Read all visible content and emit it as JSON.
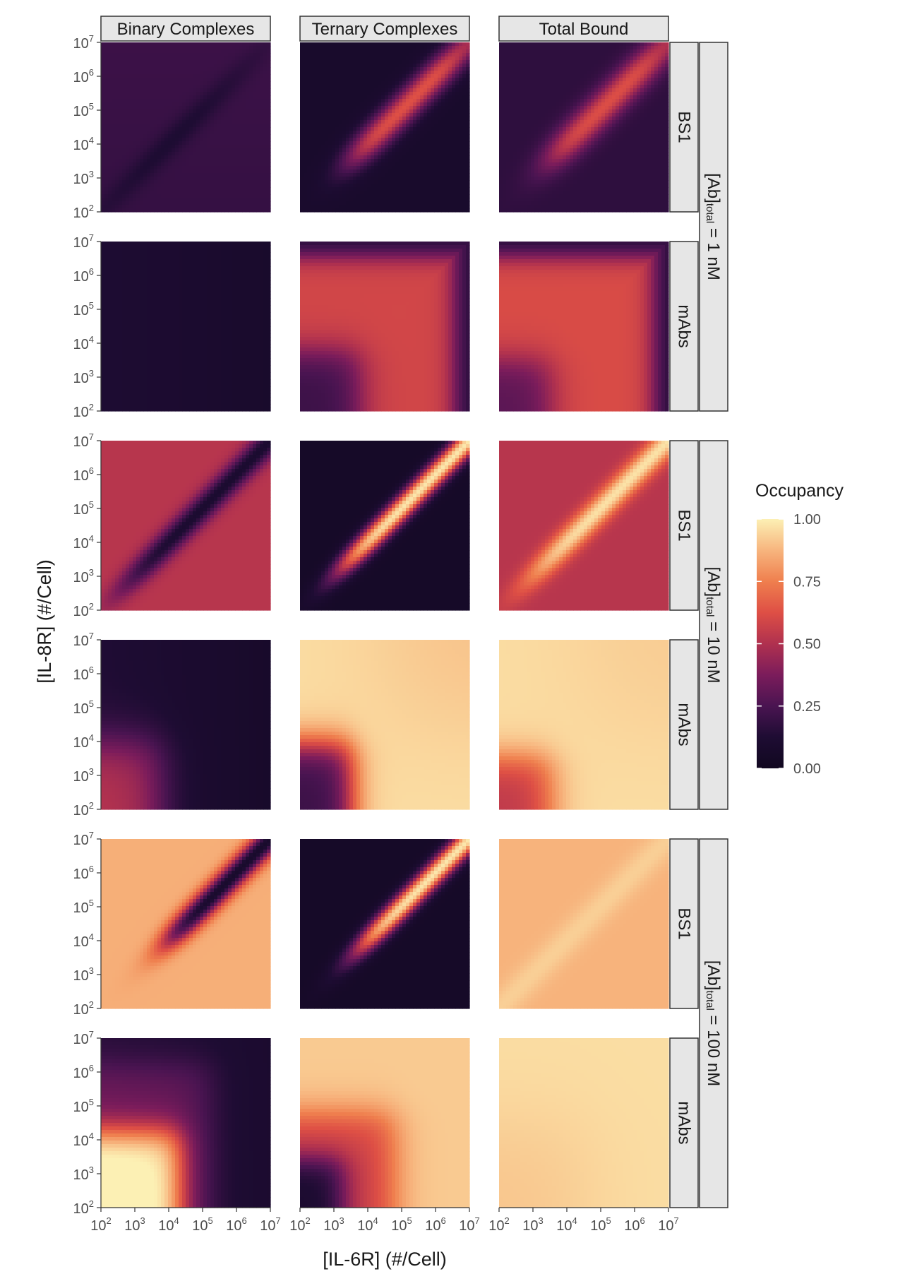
{
  "chart_data": {
    "type": "heatmap",
    "x_axis_title": "[IL-6R] (#/Cell)",
    "y_axis_title": "[IL-8R] (#/Cell)",
    "x_scale": "log10",
    "y_scale": "log10",
    "xlim": [
      100,
      10000000
    ],
    "ylim": [
      100,
      10000000
    ],
    "tick_exponents": [
      2,
      3,
      4,
      5,
      6,
      7
    ],
    "tick_base": "10",
    "column_facets": [
      "Binary Complexes",
      "Ternary Complexes",
      "Total Bound"
    ],
    "row_facets_inner": [
      "BS1",
      "mAbs"
    ],
    "row_groups": [
      {
        "label_main": "[Ab]",
        "label_sub": "total",
        "label_rest": " = 1 nM"
      },
      {
        "label_main": "[Ab]",
        "label_sub": "total",
        "label_rest": " = 10 nM"
      },
      {
        "label_main": "[Ab]",
        "label_sub": "total",
        "label_rest": " = 100 nM"
      }
    ],
    "legend": {
      "title": "Occupancy",
      "placement": "right",
      "ticks": [
        "1.00",
        "0.75",
        "0.50",
        "0.25",
        "0.00"
      ],
      "range": [
        0,
        1
      ],
      "palette": [
        "#fcf0b4",
        "#f7b57e",
        "#ef7f4e",
        "#de4f45",
        "#b0314f",
        "#7b1c5b",
        "#4a1451",
        "#1e0c33",
        "#110820"
      ]
    },
    "panels": [
      {
        "row": 0,
        "col": 0,
        "desc": "BS1 binary, 1 nM",
        "approx_values": {
          "background": 0.18,
          "diagonal_min": 0.12
        }
      },
      {
        "row": 0,
        "col": 1,
        "desc": "BS1 ternary, 1 nM",
        "approx_values": {
          "background": 0.08,
          "diagonal_peak": 0.6
        }
      },
      {
        "row": 0,
        "col": 2,
        "desc": "BS1 total, 1 nM",
        "approx_values": {
          "background": 0.18,
          "diagonal_peak": 0.6
        }
      },
      {
        "row": 1,
        "col": 0,
        "desc": "mAbs binary, 1 nM",
        "approx_values": {
          "background": 0.1
        }
      },
      {
        "row": 1,
        "col": 1,
        "desc": "mAbs ternary, 1 nM",
        "approx_values": {
          "plateau": 0.58,
          "corner_low": 0.12
        }
      },
      {
        "row": 1,
        "col": 2,
        "desc": "mAbs total, 1 nM",
        "approx_values": {
          "plateau": 0.6
        }
      },
      {
        "row": 2,
        "col": 0,
        "desc": "BS1 binary, 10 nM",
        "approx_values": {
          "background": 0.5,
          "diagonal_min": 0.1
        }
      },
      {
        "row": 2,
        "col": 1,
        "desc": "BS1 ternary, 10 nM",
        "approx_values": {
          "background": 0.05,
          "diagonal_peak": 0.95
        }
      },
      {
        "row": 2,
        "col": 2,
        "desc": "BS1 total, 10 nM",
        "approx_values": {
          "background": 0.52,
          "diagonal_peak": 0.95
        }
      },
      {
        "row": 3,
        "col": 0,
        "desc": "mAbs binary, 10 nM",
        "approx_values": {
          "background": 0.08,
          "corner_peak": 0.45
        }
      },
      {
        "row": 3,
        "col": 1,
        "desc": "mAbs ternary, 10 nM",
        "approx_values": {
          "plateau": 0.95,
          "corner_low": 0.15
        }
      },
      {
        "row": 3,
        "col": 2,
        "desc": "mAbs total, 10 nM",
        "approx_values": {
          "plateau": 0.95,
          "corner_low": 0.55
        }
      },
      {
        "row": 4,
        "col": 0,
        "desc": "BS1 binary, 100 nM",
        "approx_values": {
          "background": 0.85,
          "diagonal_min": 0.1
        }
      },
      {
        "row": 4,
        "col": 1,
        "desc": "BS1 ternary, 100 nM",
        "approx_values": {
          "background": 0.05,
          "diagonal_peak": 0.95
        }
      },
      {
        "row": 4,
        "col": 2,
        "desc": "BS1 total, 100 nM",
        "approx_values": {
          "background": 0.88
        }
      },
      {
        "row": 5,
        "col": 0,
        "desc": "mAbs binary, 100 nM",
        "approx_values": {
          "background": 0.12,
          "corner_peak": 0.85
        }
      },
      {
        "row": 5,
        "col": 1,
        "desc": "mAbs ternary, 100 nM",
        "approx_values": {
          "plateau": 0.9,
          "corner_low": 0.08
        }
      },
      {
        "row": 5,
        "col": 2,
        "desc": "mAbs total, 100 nM",
        "approx_values": {
          "plateau": 0.97
        }
      }
    ]
  }
}
